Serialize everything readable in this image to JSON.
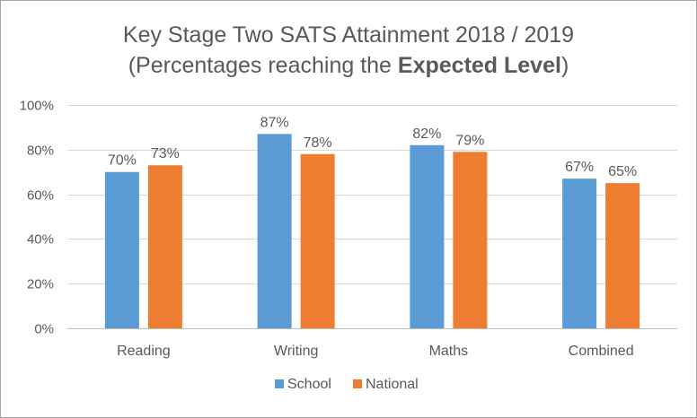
{
  "chart_data": {
    "type": "bar",
    "title_line1": "Key Stage Two SATS Attainment 2018 / 2019",
    "title_line2_prefix": "(Percentages reaching the ",
    "title_line2_bold": "Expected Level",
    "title_line2_suffix": ")",
    "categories": [
      "Reading",
      "Writing",
      "Maths",
      "Combined"
    ],
    "series": [
      {
        "name": "School",
        "values": [
          70,
          87,
          82,
          67
        ],
        "color": "#5b9bd5"
      },
      {
        "name": "National",
        "values": [
          73,
          78,
          79,
          65
        ],
        "color": "#ed7d31"
      }
    ],
    "data_labels": [
      [
        "70%",
        "87%",
        "82%",
        "67%"
      ],
      [
        "73%",
        "78%",
        "79%",
        "65%"
      ]
    ],
    "y_ticks": [
      0,
      20,
      40,
      60,
      80,
      100
    ],
    "y_tick_labels": [
      "0%",
      "20%",
      "40%",
      "60%",
      "80%",
      "100%"
    ],
    "ylim": [
      0,
      100
    ],
    "xlabel": "",
    "ylabel": "",
    "grid": true,
    "legend_position": "bottom",
    "gridline_color": "#d9d9d9"
  }
}
